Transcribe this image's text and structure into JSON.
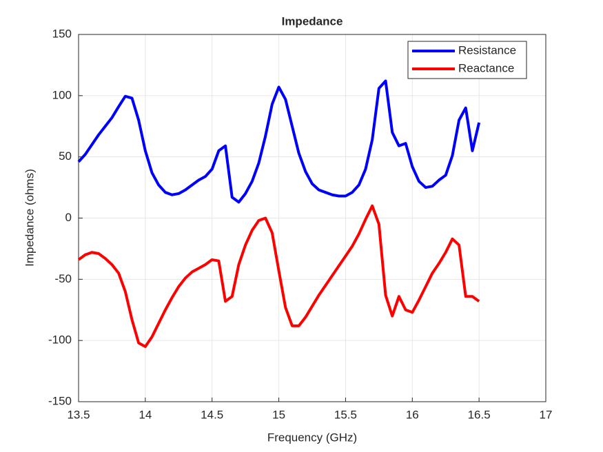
{
  "chart_data": {
    "type": "line",
    "title": "Impedance",
    "x_label": "Frequency (GHz)",
    "y_label": "Impedance (ohms)",
    "x": [
      13.5,
      13.55,
      13.6,
      13.65,
      13.7,
      13.75,
      13.8,
      13.85,
      13.9,
      13.95,
      14.0,
      14.05,
      14.1,
      14.15,
      14.2,
      14.25,
      14.3,
      14.35,
      14.4,
      14.45,
      14.5,
      14.55,
      14.6,
      14.65,
      14.7,
      14.75,
      14.8,
      14.85,
      14.9,
      14.95,
      15.0,
      15.05,
      15.1,
      15.15,
      15.2,
      15.25,
      15.3,
      15.35,
      15.4,
      15.45,
      15.5,
      15.55,
      15.6,
      15.65,
      15.7,
      15.75,
      15.8,
      15.85,
      15.9,
      15.95,
      16.0,
      16.05,
      16.1,
      16.15,
      16.2,
      16.25,
      16.3,
      16.35,
      16.4,
      16.45,
      16.5
    ],
    "series": [
      {
        "name": "Resistance",
        "color": "#0000ff",
        "values": [
          46,
          52,
          60,
          68,
          75,
          82,
          91,
          99.5,
          98,
          80,
          55,
          37,
          27,
          21,
          19,
          20,
          23,
          27,
          31,
          34,
          40,
          55,
          59,
          17,
          13,
          20,
          30,
          45,
          67,
          93,
          107,
          97,
          75,
          53,
          38,
          28,
          23,
          21,
          19,
          18,
          18,
          21,
          27,
          40,
          64,
          106,
          112,
          70,
          59,
          61,
          42,
          30,
          25,
          26,
          31,
          35,
          51,
          80,
          90,
          55,
          78
        ]
      },
      {
        "name": "Reactance",
        "color": "#ff0000",
        "values": [
          -34,
          -30,
          -28,
          -29,
          -33,
          -38,
          -45,
          -60,
          -83,
          -102,
          -105,
          -97,
          -86,
          -75,
          -65,
          -56,
          -49,
          -44,
          -41,
          -38,
          -34,
          -35,
          -68,
          -64,
          -38,
          -22,
          -10,
          -2,
          0,
          -12,
          -43,
          -73,
          -88,
          -88,
          -81,
          -72,
          -63,
          -55,
          -47,
          -39,
          -31,
          -23,
          -13,
          -1,
          10,
          -5,
          -63,
          -80,
          -64,
          -75,
          -77,
          -67,
          -56,
          -45,
          -37,
          -28,
          -17,
          -22,
          -64,
          -64,
          -68
        ]
      }
    ],
    "xlim": [
      13.5,
      17
    ],
    "xticks": [
      13.5,
      14,
      14.5,
      15,
      15.5,
      16,
      16.5,
      17
    ],
    "ylim": [
      -150,
      150
    ],
    "yticks": [
      -150,
      -100,
      -50,
      0,
      50,
      100,
      150
    ],
    "grid": true,
    "legend": "top-right"
  }
}
